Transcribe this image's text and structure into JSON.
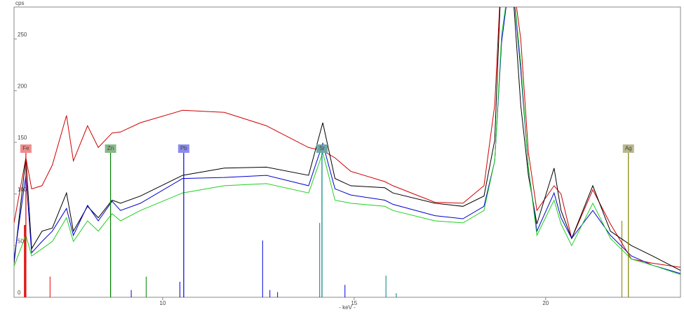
{
  "chart_data": {
    "type": "line",
    "y_label": "cps",
    "x_label": "- keV -",
    "xlim": [
      6.12,
      23.52
    ],
    "ylim": [
      0,
      281
    ],
    "xticks": [
      10,
      15,
      20
    ],
    "yticks": [
      0,
      50,
      100,
      150,
      200,
      250
    ],
    "x": [
      6.12,
      6.43,
      6.58,
      6.85,
      7.12,
      7.49,
      7.67,
      8.04,
      8.32,
      8.68,
      8.9,
      9.42,
      10.52,
      11.61,
      12.71,
      13.81,
      14.18,
      14.5,
      14.91,
      15.8,
      16.01,
      17.11,
      17.84,
      18.39,
      18.67,
      18.85,
      19.1,
      19.35,
      19.55,
      19.77,
      20.22,
      20.4,
      20.68,
      21.23,
      21.69,
      22.24,
      22.79,
      23.52
    ],
    "series": [
      {
        "color": "#d00000",
        "values": [
          72,
          135,
          105,
          108,
          128,
          176,
          132,
          166,
          145,
          159,
          160,
          169,
          181,
          179,
          166,
          145,
          142,
          135,
          122,
          112,
          108,
          92,
          91,
          108,
          186,
          320,
          320,
          250,
          140,
          84,
          108,
          100,
          57,
          104,
          71,
          37,
          33,
          29
        ]
      },
      {
        "color": "#000000",
        "values": [
          33,
          135,
          47,
          64,
          67,
          101,
          64,
          88,
          77,
          94,
          91,
          98,
          118,
          125,
          126,
          118,
          169,
          115,
          108,
          106,
          101,
          91,
          88,
          98,
          152,
          320,
          320,
          186,
          118,
          71,
          125,
          84,
          57,
          108,
          64,
          50,
          40,
          26
        ]
      },
      {
        "color": "#0000d0",
        "values": [
          37,
          118,
          43,
          54,
          64,
          86,
          60,
          89,
          74,
          93,
          84,
          91,
          115,
          116,
          118,
          108,
          149,
          105,
          99,
          94,
          90,
          79,
          76,
          88,
          132,
          247,
          320,
          220,
          125,
          64,
          101,
          77,
          57,
          84,
          60,
          40,
          31,
          23
        ]
      },
      {
        "color": "#20d020",
        "values": [
          30,
          60,
          40,
          47,
          54,
          77,
          54,
          74,
          64,
          81,
          74,
          84,
          101,
          108,
          110,
          101,
          140,
          94,
          91,
          88,
          84,
          74,
          72,
          84,
          132,
          254,
          320,
          227,
          125,
          60,
          94,
          71,
          50,
          91,
          57,
          37,
          31,
          22
        ]
      }
    ],
    "markers": [
      {
        "label": "Fe",
        "x": 6.43,
        "color": "#e00000",
        "box": "#f08c8c"
      },
      {
        "label": "Zn",
        "x": 8.64,
        "color": "#008000",
        "box": "#88b888"
      },
      {
        "label": "Pb",
        "x": 10.55,
        "color": "#0000e0",
        "box": "#8c8cf0"
      },
      {
        "label": "Sr",
        "x": 14.16,
        "color": "#008080",
        "box": "#70a8a8"
      },
      {
        "label": "Ag",
        "x": 22.16,
        "color": "#808000",
        "box": "#b8b88c"
      }
    ],
    "emission_lines": [
      {
        "color": "#e00000",
        "x": [
          6.4,
          7.06
        ],
        "values": [
          70,
          20
        ]
      },
      {
        "color": "#008000",
        "x": [
          8.64,
          9.57
        ],
        "values": [
          65,
          20
        ]
      },
      {
        "color": "#0000e0",
        "x": [
          9.18,
          10.45,
          12.61,
          12.8,
          13.0,
          14.76
        ],
        "values": [
          7,
          15,
          55,
          7,
          5,
          12
        ]
      },
      {
        "color": "#008080",
        "x": [
          14.1,
          15.83,
          16.1
        ],
        "values": [
          72,
          21,
          4
        ]
      },
      {
        "color": "#808000",
        "x": [
          21.99
        ],
        "values": [
          74
        ]
      }
    ]
  }
}
